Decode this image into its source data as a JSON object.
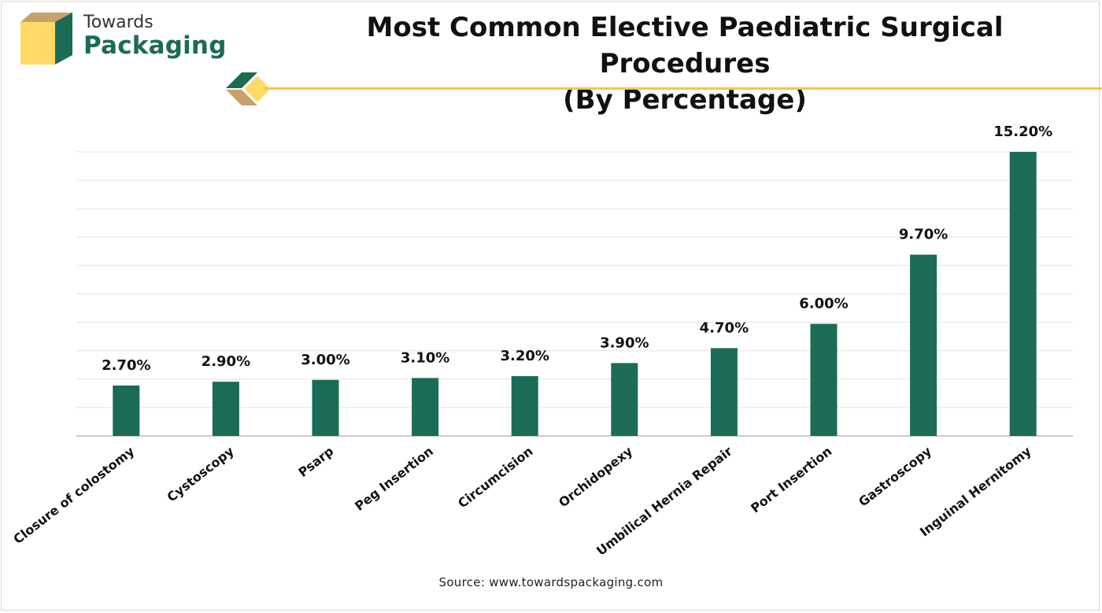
{
  "brand": {
    "name_top": "Towards",
    "name_bottom": "Packaging",
    "colors": {
      "green": "#1b6b57",
      "gold": "#f2c84b",
      "tan": "#c8a06a",
      "yellow": "#ffd966"
    }
  },
  "header": {
    "title_line1": "Most Common Elective Paediatric Surgical Procedures",
    "title_line2": "(By Percentage)"
  },
  "source": "Source: www.towardspackaging.com",
  "chart_data": {
    "type": "bar",
    "title": "Most Common Elective Paediatric Surgical Procedures (By Percentage)",
    "xlabel": "",
    "ylabel": "",
    "ylim": [
      0,
      15.2
    ],
    "grid": true,
    "legend": "none",
    "bar_color": "#1b6b57",
    "categories": [
      "Closure of colostomy",
      "Cystoscopy",
      "Psarp",
      "Peg Insertion",
      "Circumcision",
      "Orchidopexy",
      "Umbilical Hernia Repair",
      "Port Insertion",
      "Gastroscopy",
      "Inguinal Hernitomy"
    ],
    "values": [
      2.7,
      2.9,
      3.0,
      3.1,
      3.2,
      3.9,
      4.7,
      6.0,
      9.7,
      15.2
    ],
    "data_labels": [
      "2.70%",
      "2.90%",
      "3.00%",
      "3.10%",
      "3.20%",
      "3.90%",
      "4.70%",
      "6.00%",
      "9.70%",
      "15.20%"
    ]
  }
}
